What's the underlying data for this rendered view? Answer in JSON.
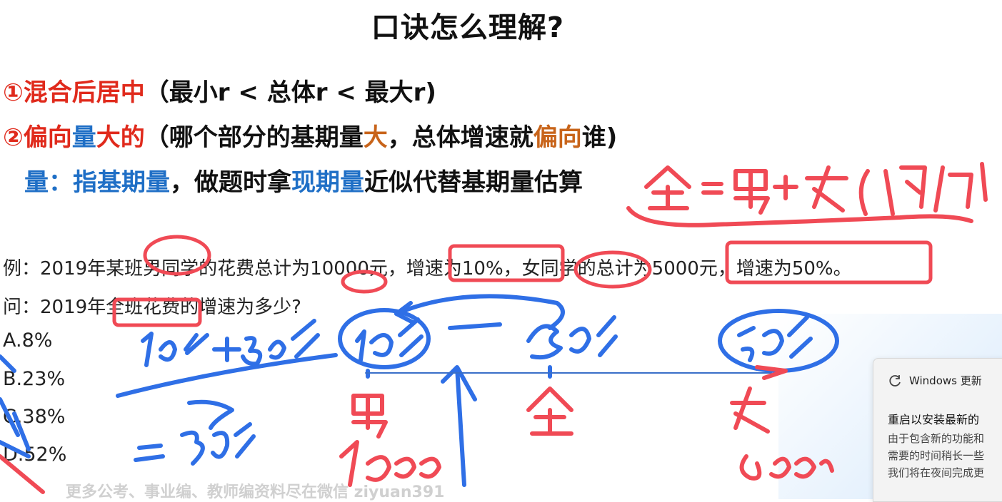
{
  "slide": {
    "title": "口诀怎么理解?",
    "rule1": {
      "main": "①混合后居中",
      "tail": "（最小r < 总体r < 最大r)"
    },
    "rule2": {
      "p1": "②偏向",
      "p2": "量",
      "p3": "大的",
      "p4": "（哪个部分的基期量",
      "p5": "大",
      "p6": "，总体增速就",
      "p7": "偏向",
      "p8": "谁)"
    },
    "rule3": {
      "p1": "量：",
      "p2": "指基期量",
      "p3": "，做题时拿",
      "p4": "现期量",
      "p5": "近似代替基期量估算"
    },
    "example": "例：2019年某班男同学的花费总计为10000元，增速为10%，女同学的总计为5000元，增速为50%。",
    "question": "问：2019年全班花费的增速为多少?",
    "options": [
      "A.8%",
      "B.23%",
      "C.38%",
      "D.52%"
    ],
    "watermark": "更多公考、事业编、教师编资料尽在微信 ziyuan391"
  },
  "toast": {
    "app": "Windows 更新",
    "title": "重启以安装最新的",
    "lines": [
      "由于包含新的功能和",
      "需要的时间稍长一些",
      "我们将在夜间完成更"
    ]
  },
  "colors": {
    "red_ink": "#f04a55",
    "blue_ink": "#2f6fe6",
    "red_text": "#e02a1c",
    "blue_text": "#1f6fc6",
    "orange_text": "#c8641a"
  }
}
